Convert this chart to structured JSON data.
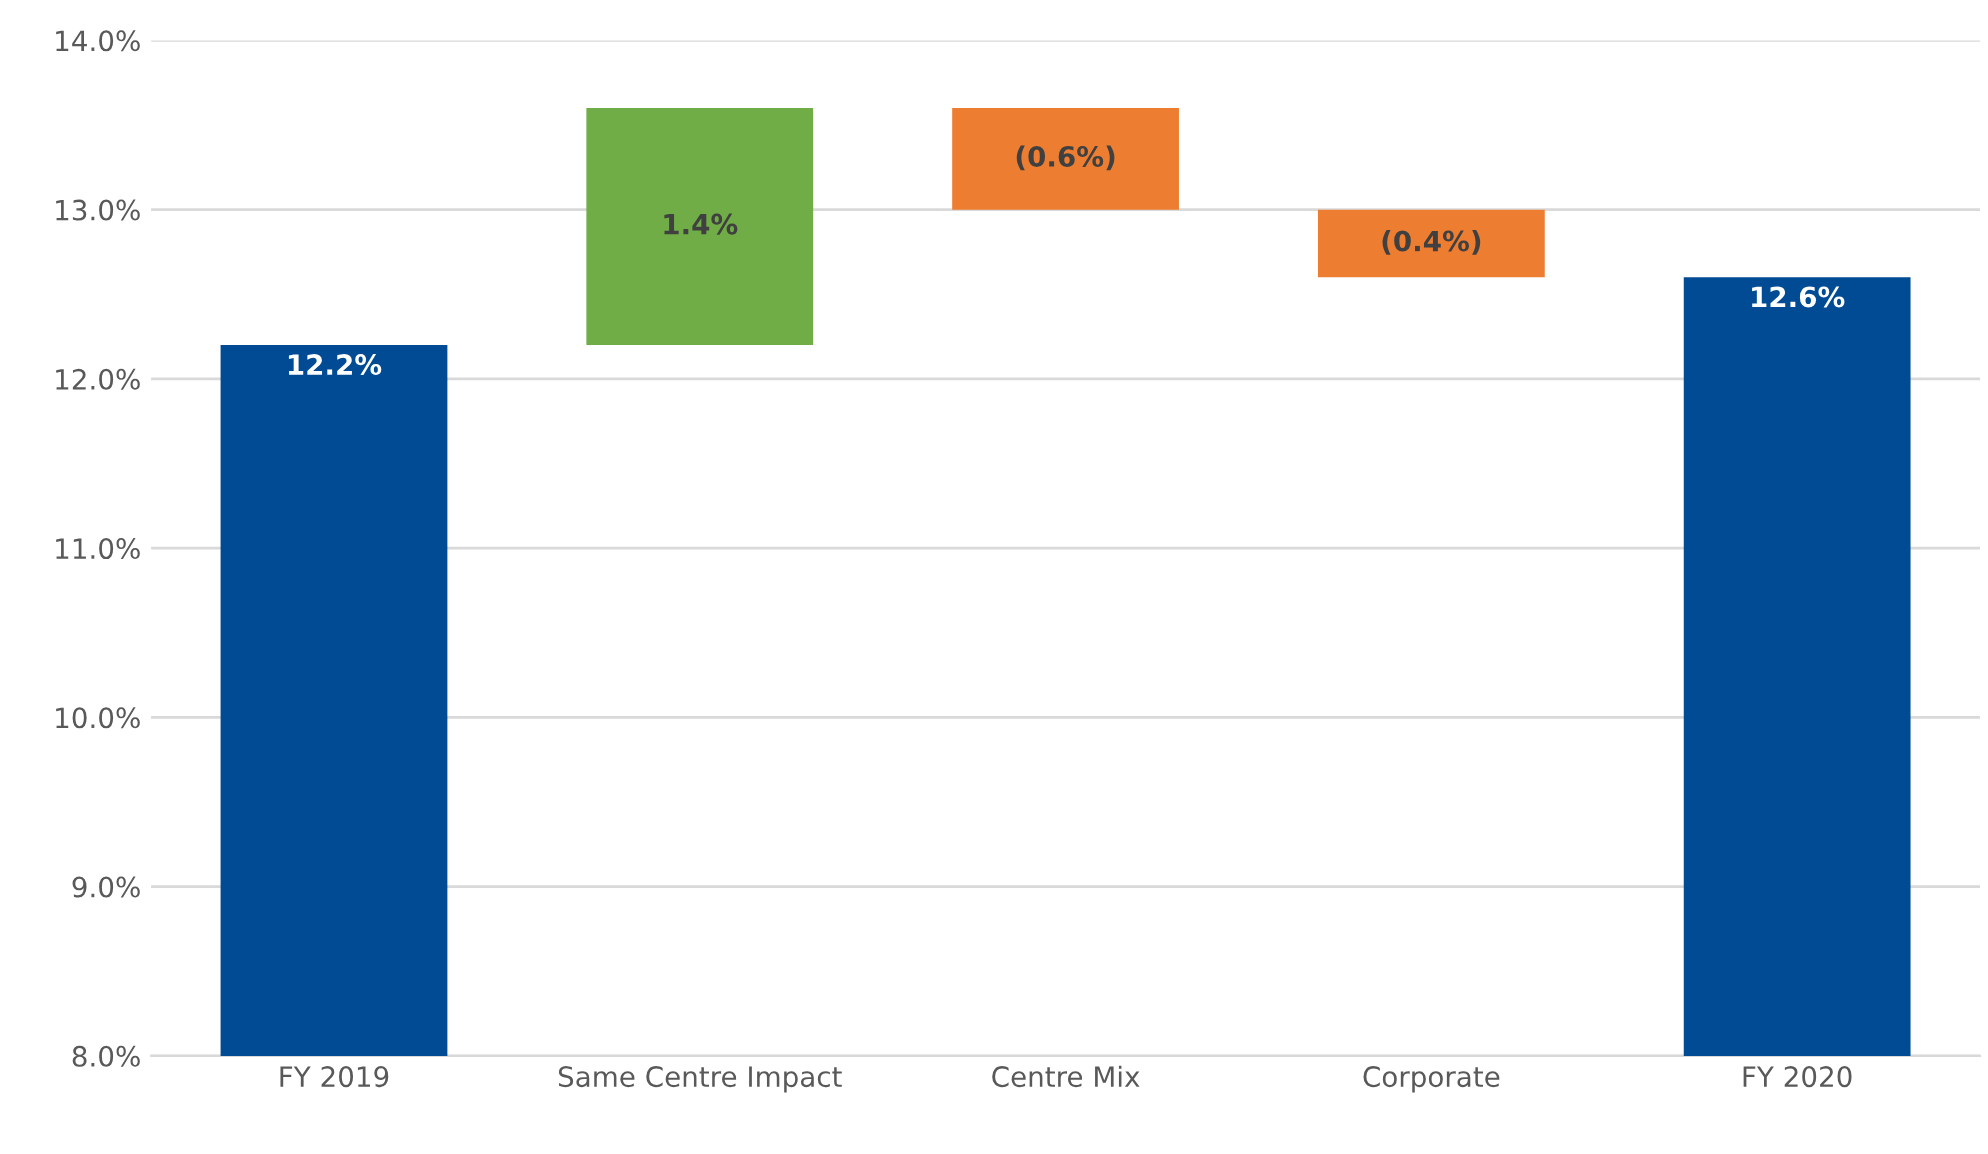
{
  "chart_data": {
    "type": "bar",
    "categories": [
      "FY 2019",
      "Same Centre Impact",
      "Centre Mix",
      "Corporate",
      "FY 2020"
    ],
    "base": [
      8.0,
      12.2,
      13.6,
      13.0,
      8.0
    ],
    "values": [
      4.2,
      1.4,
      -0.6,
      -0.4,
      4.6
    ],
    "colors": [
      "#004b93",
      "#70ad47",
      "#ed7d31",
      "#ed7d31",
      "#004b93"
    ],
    "value_labels": [
      "12.2%",
      "1.4%",
      "(0.6%)",
      "(0.4%)",
      "12.6%"
    ],
    "ylim": [
      8,
      14
    ],
    "yticks": [
      {
        "value": 8,
        "label": "8.0%"
      },
      {
        "value": 9,
        "label": "9.0%"
      },
      {
        "value": 10,
        "label": "10.0%"
      },
      {
        "value": 11,
        "label": "11.0%"
      },
      {
        "value": 12,
        "label": "12.0%"
      },
      {
        "value": 13,
        "label": "13.0%"
      },
      {
        "value": 14,
        "label": "14.0%"
      }
    ],
    "grid": "y",
    "legend": false
  }
}
